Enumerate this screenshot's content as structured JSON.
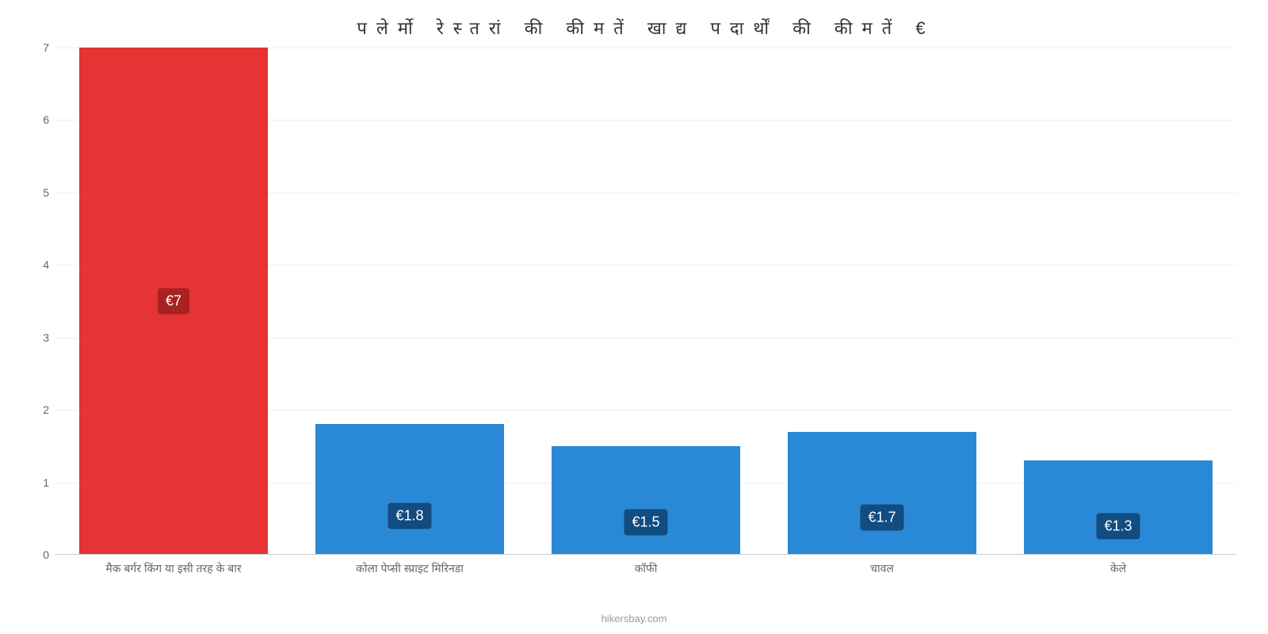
{
  "chart": {
    "type": "bar",
    "title": "पलेर्मो रेस्तरां की कीमतें खाद्य पदार्थों की कीमतें €",
    "title_fontsize": 22,
    "title_color": "#333333",
    "title_letter_spacing": 12,
    "background_color": "#ffffff",
    "footer_text": "hikersbay.com",
    "footer_color": "#999999",
    "footer_fontsize": 13,
    "y_axis": {
      "min": 0,
      "max": 7,
      "ticks": [
        0,
        1,
        2,
        3,
        4,
        5,
        6,
        7
      ],
      "tick_color": "#666666",
      "tick_fontsize": 14
    },
    "grid": {
      "line_color": "#f0f0f0",
      "baseline_color": "#cccccc"
    },
    "bars": [
      {
        "category": "मैक बर्गर किंग या इसी तरह के बार",
        "value": 7,
        "value_label": "€7",
        "bar_color": "#e63333",
        "label_bg": "#a82222",
        "label_text_color": "#ffffff"
      },
      {
        "category": "कोला पेप्सी स्प्राइट मिरिनडा",
        "value": 1.8,
        "value_label": "€1.8",
        "bar_color": "#2a89d6",
        "label_bg": "#124c80",
        "label_text_color": "#ffffff"
      },
      {
        "category": "कॉफी",
        "value": 1.5,
        "value_label": "€1.5",
        "bar_color": "#2a89d6",
        "label_bg": "#124c80",
        "label_text_color": "#ffffff"
      },
      {
        "category": "चावल",
        "value": 1.7,
        "value_label": "€1.7",
        "bar_color": "#2a89d6",
        "label_bg": "#124c80",
        "label_text_color": "#ffffff"
      },
      {
        "category": "केले",
        "value": 1.3,
        "value_label": "€1.3",
        "bar_color": "#2a89d6",
        "label_bg": "#124c80",
        "label_text_color": "#ffffff"
      }
    ],
    "x_label_fontsize": 14,
    "x_label_color": "#666666",
    "bar_label_fontsize": 18,
    "bar_width_ratio": 0.8
  }
}
